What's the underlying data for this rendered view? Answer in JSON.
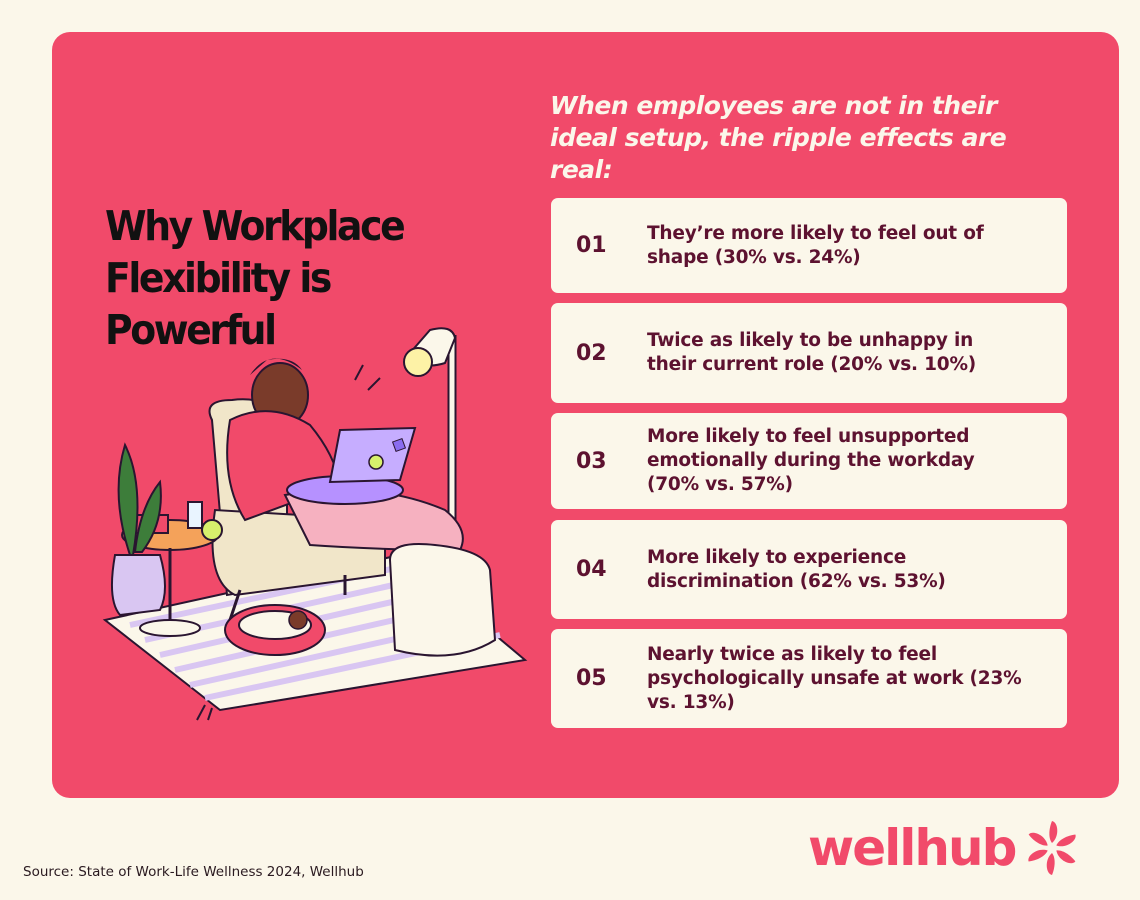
{
  "headline": {
    "line1": "Why Workplace",
    "line2": "Flexibility is Powerful"
  },
  "subhead": "When employees are not in their ideal setup, the ripple effects are real:",
  "items": [
    {
      "number": "01",
      "text": "They’re more likely to feel out of shape (30% vs. 24%)"
    },
    {
      "number": "02",
      "text": "Twice as likely to be unhappy in their current role (20% vs. 10%)"
    },
    {
      "number": "03",
      "text": "More likely to feel unsupported emotionally during the workday (70% vs. 57%)"
    },
    {
      "number": "04",
      "text": "More likely to experience discrimination (62% vs. 53%)"
    },
    {
      "number": "05",
      "text": "Nearly twice as likely to feel psychologically unsafe at work (23% vs. 13%)"
    }
  ],
  "source": "Source: State of Work-Life Wellness 2024, Wellhub",
  "brand": {
    "name": "wellhub",
    "icon": "wellhub-swirl-icon",
    "color": "#f14a6a"
  },
  "colors": {
    "background": "#fbf7ea",
    "card": "#f14a6a",
    "item_text": "#5d1230"
  }
}
